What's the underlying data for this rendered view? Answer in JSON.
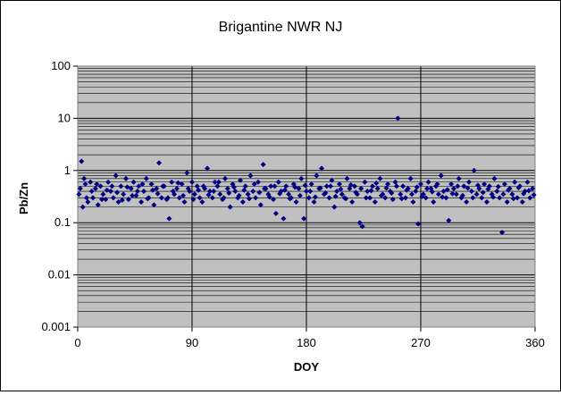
{
  "chart_data": {
    "type": "scatter",
    "title": "Brigantine NWR NJ",
    "xlabel": "DOY",
    "ylabel": "Pb/Zn",
    "xlim": [
      0,
      360
    ],
    "ylim": [
      0.001,
      100
    ],
    "y_scale": "log",
    "x_ticks": [
      0,
      90,
      180,
      270,
      360
    ],
    "x_tick_labels": [
      "0",
      "90",
      "180",
      "270",
      "360"
    ],
    "y_ticks": [
      0.001,
      0.01,
      0.1,
      1,
      10,
      100
    ],
    "y_tick_labels": [
      "0.001",
      "0.01",
      "0.1",
      "1",
      "10",
      "100"
    ],
    "plot_background": "#c0c0c0",
    "marker_color": "#000080",
    "grid": "major vertical and horizontal, minor horizontal",
    "legend": "none",
    "series": [
      {
        "values": [
          [
            1,
            0.35
          ],
          [
            3,
            1.5
          ],
          [
            4,
            0.2
          ],
          [
            5,
            0.7
          ],
          [
            6,
            0.55
          ],
          [
            8,
            0.25
          ],
          [
            10,
            0.6
          ],
          [
            12,
            0.3
          ],
          [
            14,
            0.45
          ],
          [
            16,
            0.22
          ],
          [
            18,
            0.5
          ],
          [
            20,
            0.35
          ],
          [
            22,
            0.28
          ],
          [
            24,
            0.6
          ],
          [
            26,
            0.4
          ],
          [
            28,
            0.3
          ],
          [
            30,
            0.8
          ],
          [
            32,
            0.25
          ],
          [
            34,
            0.5
          ],
          [
            36,
            0.35
          ],
          [
            38,
            0.7
          ],
          [
            40,
            0.28
          ],
          [
            42,
            0.45
          ],
          [
            44,
            0.6
          ],
          [
            46,
            0.33
          ],
          [
            48,
            0.5
          ],
          [
            50,
            0.25
          ],
          [
            52,
            0.4
          ],
          [
            54,
            0.7
          ],
          [
            56,
            0.3
          ],
          [
            58,
            0.55
          ],
          [
            60,
            0.22
          ],
          [
            62,
            0.45
          ],
          [
            64,
            1.4
          ],
          [
            66,
            0.3
          ],
          [
            68,
            0.5
          ],
          [
            70,
            0.28
          ],
          [
            72,
            0.12
          ],
          [
            74,
            0.6
          ],
          [
            76,
            0.35
          ],
          [
            78,
            0.45
          ],
          [
            80,
            0.3
          ],
          [
            82,
            0.55
          ],
          [
            84,
            0.25
          ],
          [
            86,
            0.9
          ],
          [
            88,
            0.4
          ],
          [
            90,
            0.6
          ],
          [
            92,
            0.35
          ],
          [
            94,
            0.5
          ],
          [
            96,
            0.3
          ],
          [
            98,
            0.25
          ],
          [
            100,
            0.45
          ],
          [
            102,
            1.1
          ],
          [
            104,
            0.4
          ],
          [
            106,
            0.3
          ],
          [
            108,
            0.6
          ],
          [
            110,
            0.5
          ],
          [
            112,
            0.35
          ],
          [
            114,
            0.28
          ],
          [
            116,
            0.7
          ],
          [
            118,
            0.45
          ],
          [
            120,
            0.2
          ],
          [
            122,
            0.55
          ],
          [
            124,
            0.4
          ],
          [
            126,
            0.3
          ],
          [
            128,
            0.65
          ],
          [
            130,
            0.25
          ],
          [
            132,
            0.5
          ],
          [
            134,
            0.35
          ],
          [
            136,
            0.8
          ],
          [
            138,
            0.4
          ],
          [
            140,
            0.3
          ],
          [
            142,
            0.6
          ],
          [
            144,
            0.22
          ],
          [
            146,
            1.3
          ],
          [
            148,
            0.45
          ],
          [
            150,
            0.35
          ],
          [
            152,
            0.5
          ],
          [
            154,
            0.28
          ],
          [
            156,
            0.15
          ],
          [
            158,
            0.6
          ],
          [
            160,
            0.4
          ],
          [
            162,
            0.12
          ],
          [
            164,
            0.5
          ],
          [
            166,
            0.35
          ],
          [
            168,
            0.3
          ],
          [
            170,
            0.55
          ],
          [
            172,
            0.25
          ],
          [
            174,
            0.45
          ],
          [
            176,
            0.7
          ],
          [
            178,
            0.12
          ],
          [
            180,
            0.4
          ],
          [
            182,
            0.3
          ],
          [
            184,
            0.55
          ],
          [
            186,
            0.25
          ],
          [
            188,
            0.8
          ],
          [
            190,
            0.45
          ],
          [
            192,
            1.1
          ],
          [
            194,
            0.35
          ],
          [
            196,
            0.5
          ],
          [
            198,
            0.3
          ],
          [
            200,
            0.65
          ],
          [
            202,
            0.2
          ],
          [
            204,
            0.4
          ],
          [
            206,
            0.55
          ],
          [
            208,
            0.35
          ],
          [
            210,
            0.3
          ],
          [
            212,
            0.7
          ],
          [
            214,
            0.45
          ],
          [
            216,
            0.25
          ],
          [
            218,
            0.5
          ],
          [
            220,
            0.35
          ],
          [
            222,
            0.1
          ],
          [
            224,
            0.085
          ],
          [
            226,
            0.6
          ],
          [
            228,
            0.4
          ],
          [
            230,
            0.3
          ],
          [
            232,
            0.5
          ],
          [
            234,
            0.25
          ],
          [
            236,
            0.45
          ],
          [
            238,
            0.7
          ],
          [
            240,
            0.35
          ],
          [
            242,
            0.3
          ],
          [
            244,
            0.55
          ],
          [
            246,
            0.4
          ],
          [
            248,
            0.28
          ],
          [
            250,
            0.6
          ],
          [
            252,
            10
          ],
          [
            254,
            0.35
          ],
          [
            256,
            0.5
          ],
          [
            258,
            0.3
          ],
          [
            260,
            0.45
          ],
          [
            262,
            0.7
          ],
          [
            264,
            0.25
          ],
          [
            266,
            0.4
          ],
          [
            268,
            0.095
          ],
          [
            270,
            0.55
          ],
          [
            272,
            0.35
          ],
          [
            274,
            0.3
          ],
          [
            276,
            0.6
          ],
          [
            278,
            0.45
          ],
          [
            280,
            0.25
          ],
          [
            282,
            0.5
          ],
          [
            284,
            0.35
          ],
          [
            286,
            0.8
          ],
          [
            288,
            0.4
          ],
          [
            290,
            0.3
          ],
          [
            292,
            0.11
          ],
          [
            294,
            0.55
          ],
          [
            296,
            0.45
          ],
          [
            298,
            0.35
          ],
          [
            300,
            0.7
          ],
          [
            302,
            0.3
          ],
          [
            304,
            0.5
          ],
          [
            306,
            0.25
          ],
          [
            308,
            0.6
          ],
          [
            310,
            0.4
          ],
          [
            312,
            1.0
          ],
          [
            314,
            0.35
          ],
          [
            316,
            0.45
          ],
          [
            318,
            0.3
          ],
          [
            320,
            0.55
          ],
          [
            322,
            0.25
          ],
          [
            324,
            0.5
          ],
          [
            326,
            0.35
          ],
          [
            328,
            0.7
          ],
          [
            330,
            0.4
          ],
          [
            332,
            0.3
          ],
          [
            334,
            0.065
          ],
          [
            336,
            0.55
          ],
          [
            338,
            0.25
          ],
          [
            340,
            0.45
          ],
          [
            342,
            0.35
          ],
          [
            344,
            0.6
          ],
          [
            346,
            0.3
          ],
          [
            348,
            0.5
          ],
          [
            350,
            0.25
          ],
          [
            352,
            0.4
          ],
          [
            354,
            0.6
          ],
          [
            356,
            0.3
          ],
          [
            358,
            0.45
          ],
          [
            2,
            0.45
          ],
          [
            7,
            0.3
          ],
          [
            11,
            0.4
          ],
          [
            15,
            0.55
          ],
          [
            19,
            0.28
          ],
          [
            23,
            0.42
          ],
          [
            27,
            0.5
          ],
          [
            31,
            0.38
          ],
          [
            35,
            0.27
          ],
          [
            39,
            0.48
          ],
          [
            43,
            0.33
          ],
          [
            47,
            0.4
          ],
          [
            51,
            0.55
          ],
          [
            55,
            0.29
          ],
          [
            59,
            0.42
          ],
          [
            63,
            0.36
          ],
          [
            67,
            0.5
          ],
          [
            71,
            0.3
          ],
          [
            75,
            0.4
          ],
          [
            79,
            0.58
          ],
          [
            83,
            0.33
          ],
          [
            87,
            0.45
          ],
          [
            91,
            0.28
          ],
          [
            95,
            0.42
          ],
          [
            99,
            0.5
          ],
          [
            103,
            0.34
          ],
          [
            107,
            0.4
          ],
          [
            111,
            0.6
          ],
          [
            115,
            0.3
          ],
          [
            119,
            0.37
          ],
          [
            123,
            0.48
          ],
          [
            127,
            0.33
          ],
          [
            131,
            0.42
          ],
          [
            135,
            0.29
          ],
          [
            139,
            0.55
          ],
          [
            143,
            0.38
          ],
          [
            147,
            0.45
          ],
          [
            151,
            0.31
          ],
          [
            155,
            0.5
          ],
          [
            159,
            0.36
          ],
          [
            163,
            0.42
          ],
          [
            167,
            0.29
          ],
          [
            171,
            0.48
          ],
          [
            175,
            0.33
          ],
          [
            179,
            0.52
          ],
          [
            183,
            0.4
          ],
          [
            187,
            0.31
          ],
          [
            191,
            0.46
          ],
          [
            195,
            0.37
          ],
          [
            199,
            0.5
          ],
          [
            203,
            0.32
          ],
          [
            207,
            0.44
          ],
          [
            211,
            0.29
          ],
          [
            215,
            0.53
          ],
          [
            219,
            0.38
          ],
          [
            223,
            0.45
          ],
          [
            227,
            0.3
          ],
          [
            231,
            0.41
          ],
          [
            235,
            0.57
          ],
          [
            239,
            0.33
          ],
          [
            243,
            0.46
          ],
          [
            247,
            0.37
          ],
          [
            251,
            0.5
          ],
          [
            255,
            0.29
          ],
          [
            259,
            0.42
          ],
          [
            263,
            0.35
          ],
          [
            267,
            0.48
          ],
          [
            271,
            0.32
          ],
          [
            275,
            0.45
          ],
          [
            279,
            0.39
          ],
          [
            283,
            0.55
          ],
          [
            287,
            0.31
          ],
          [
            291,
            0.43
          ],
          [
            295,
            0.36
          ],
          [
            299,
            0.5
          ],
          [
            303,
            0.33
          ],
          [
            307,
            0.46
          ],
          [
            311,
            0.3
          ],
          [
            315,
            0.52
          ],
          [
            319,
            0.38
          ],
          [
            323,
            0.44
          ],
          [
            327,
            0.31
          ],
          [
            331,
            0.49
          ],
          [
            335,
            0.35
          ],
          [
            339,
            0.42
          ],
          [
            343,
            0.29
          ],
          [
            347,
            0.47
          ],
          [
            351,
            0.36
          ],
          [
            355,
            0.41
          ],
          [
            359,
            0.34
          ]
        ]
      }
    ]
  }
}
